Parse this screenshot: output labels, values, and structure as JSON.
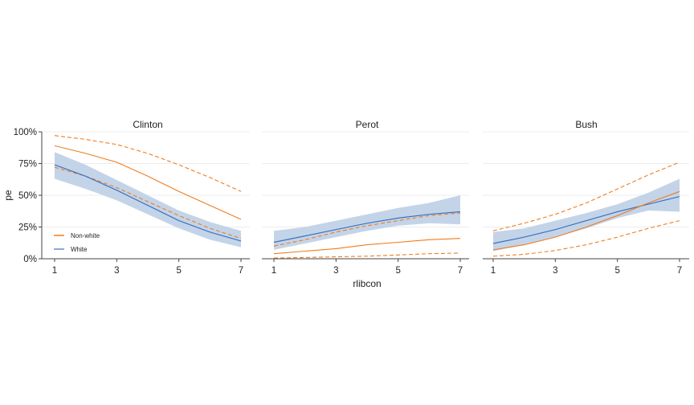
{
  "chart_data": {
    "type": "line",
    "xlabel": "rlibcon",
    "ylabel": "pe",
    "xlim": [
      1,
      7
    ],
    "ylim": [
      0,
      1
    ],
    "x_ticks": [
      "1",
      "3",
      "5",
      "7"
    ],
    "y_ticks": [
      "0%",
      "25%",
      "50%",
      "75%",
      "100%"
    ],
    "grid": true,
    "legend": {
      "position": "bottom-left of first panel",
      "entries": [
        {
          "label": "Non-white",
          "color": "#f07d1e"
        },
        {
          "label": "White",
          "color": "#3b73bf"
        }
      ]
    },
    "colors": {
      "white_line": "#3b73bf",
      "white_band": "#c4d4e8",
      "nonwhite": "#f07d1e"
    },
    "x": [
      1,
      2,
      3,
      4,
      5,
      6,
      7
    ],
    "panels": [
      {
        "title": "Clinton",
        "series": [
          {
            "name": "White",
            "values": [
              0.74,
              0.65,
              0.54,
              0.42,
              0.3,
              0.21,
              0.14
            ]
          },
          {
            "name": "White lower",
            "values": [
              0.63,
              0.55,
              0.46,
              0.35,
              0.24,
              0.15,
              0.09
            ]
          },
          {
            "name": "White upper",
            "values": [
              0.84,
              0.74,
              0.62,
              0.5,
              0.38,
              0.29,
              0.22
            ]
          },
          {
            "name": "Non-white",
            "values": [
              0.89,
              0.83,
              0.76,
              0.65,
              0.53,
              0.42,
              0.31
            ]
          },
          {
            "name": "Non-white lower",
            "values": [
              0.72,
              0.65,
              0.56,
              0.45,
              0.34,
              0.24,
              0.16
            ]
          },
          {
            "name": "Non-white upper",
            "values": [
              0.97,
              0.94,
              0.9,
              0.83,
              0.74,
              0.64,
              0.53
            ]
          }
        ]
      },
      {
        "title": "Perot",
        "series": [
          {
            "name": "White",
            "values": [
              0.13,
              0.18,
              0.23,
              0.28,
              0.32,
              0.35,
              0.37
            ]
          },
          {
            "name": "White lower",
            "values": [
              0.07,
              0.12,
              0.17,
              0.22,
              0.26,
              0.28,
              0.27
            ]
          },
          {
            "name": "White upper",
            "values": [
              0.22,
              0.25,
              0.3,
              0.35,
              0.4,
              0.44,
              0.5
            ]
          },
          {
            "name": "Non-white",
            "values": [
              0.04,
              0.06,
              0.08,
              0.11,
              0.13,
              0.15,
              0.16
            ]
          },
          {
            "name": "Non-white lower",
            "values": [
              0.005,
              0.01,
              0.015,
              0.02,
              0.03,
              0.04,
              0.045
            ]
          },
          {
            "name": "Non-white upper",
            "values": [
              0.1,
              0.15,
              0.21,
              0.26,
              0.3,
              0.34,
              0.36
            ]
          }
        ]
      },
      {
        "title": "Bush",
        "series": [
          {
            "name": "White",
            "values": [
              0.12,
              0.17,
              0.23,
              0.3,
              0.37,
              0.43,
              0.49
            ]
          },
          {
            "name": "White lower",
            "values": [
              0.06,
              0.11,
              0.17,
              0.24,
              0.32,
              0.38,
              0.37
            ]
          },
          {
            "name": "White upper",
            "values": [
              0.21,
              0.24,
              0.3,
              0.36,
              0.43,
              0.52,
              0.63
            ]
          },
          {
            "name": "Non-white",
            "values": [
              0.07,
              0.11,
              0.17,
              0.25,
              0.34,
              0.44,
              0.53
            ]
          },
          {
            "name": "Non-white lower",
            "values": [
              0.02,
              0.035,
              0.065,
              0.11,
              0.17,
              0.24,
              0.3
            ]
          },
          {
            "name": "Non-white upper",
            "values": [
              0.22,
              0.28,
              0.35,
              0.44,
              0.55,
              0.66,
              0.76
            ]
          }
        ]
      }
    ]
  }
}
